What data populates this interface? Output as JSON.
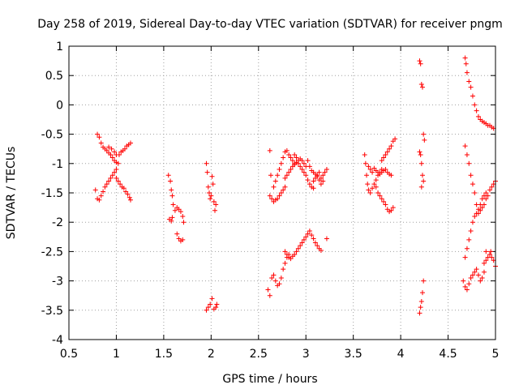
{
  "chart_data": {
    "type": "scatter",
    "title": "Day 258 of 2019, Sidereal Day-to-day VTEC variation (SDTVAR) for receiver pngm",
    "xlabel": "GPS time / hours",
    "ylabel": "SDTVAR / TECUs",
    "xlim": [
      0.5,
      5
    ],
    "ylim": [
      -4,
      1
    ],
    "xticks": [
      0.5,
      1,
      1.5,
      2,
      2.5,
      3,
      3.5,
      4,
      4.5,
      5
    ],
    "xtick_labels": [
      "0.5",
      "1",
      "1.5",
      "2",
      "2.5",
      "3",
      "3.5",
      "4",
      "4.5",
      "5"
    ],
    "yticks": [
      1,
      0.5,
      0,
      -0.5,
      -1,
      -1.5,
      -2,
      -2.5,
      -3,
      -3.5,
      -4
    ],
    "ytick_labels": [
      "1",
      "0.5",
      "0",
      "-0.5",
      "-1",
      "-1.5",
      "-2",
      "-2.5",
      "-3",
      "-3.5",
      "-4"
    ],
    "grid": true,
    "marker": "+",
    "color": "#ff0000",
    "series": [
      {
        "name": "SDTVAR",
        "points": [
          [
            0.8,
            -0.5
          ],
          [
            0.82,
            -0.55
          ],
          [
            0.84,
            -0.65
          ],
          [
            0.86,
            -0.72
          ],
          [
            0.88,
            -0.75
          ],
          [
            0.9,
            -0.78
          ],
          [
            0.92,
            -0.82
          ],
          [
            0.94,
            -0.85
          ],
          [
            0.96,
            -0.9
          ],
          [
            0.98,
            -0.95
          ],
          [
            1.0,
            -0.98
          ],
          [
            1.02,
            -1.0
          ],
          [
            0.92,
            -0.72
          ],
          [
            0.95,
            -0.75
          ],
          [
            0.98,
            -0.8
          ],
          [
            1.0,
            -0.85
          ],
          [
            1.03,
            -0.85
          ],
          [
            1.05,
            -0.8
          ],
          [
            1.07,
            -0.78
          ],
          [
            1.09,
            -0.75
          ],
          [
            1.11,
            -0.7
          ],
          [
            1.13,
            -0.68
          ],
          [
            1.15,
            -0.65
          ],
          [
            0.78,
            -1.45
          ],
          [
            0.8,
            -1.6
          ],
          [
            0.82,
            -1.62
          ],
          [
            0.84,
            -1.55
          ],
          [
            0.86,
            -1.48
          ],
          [
            0.88,
            -1.4
          ],
          [
            0.9,
            -1.35
          ],
          [
            0.92,
            -1.3
          ],
          [
            0.94,
            -1.25
          ],
          [
            0.96,
            -1.2
          ],
          [
            0.98,
            -1.15
          ],
          [
            1.0,
            -1.1
          ],
          [
            1.0,
            -1.25
          ],
          [
            1.02,
            -1.3
          ],
          [
            1.04,
            -1.35
          ],
          [
            1.06,
            -1.4
          ],
          [
            1.08,
            -1.42
          ],
          [
            1.1,
            -1.48
          ],
          [
            1.12,
            -1.52
          ],
          [
            1.14,
            -1.58
          ],
          [
            1.15,
            -1.62
          ],
          [
            1.55,
            -1.2
          ],
          [
            1.57,
            -1.3
          ],
          [
            1.58,
            -1.45
          ],
          [
            1.59,
            -1.55
          ],
          [
            1.6,
            -1.7
          ],
          [
            1.56,
            -1.95
          ],
          [
            1.58,
            -1.98
          ],
          [
            1.59,
            -1.92
          ],
          [
            1.62,
            -1.8
          ],
          [
            1.64,
            -1.75
          ],
          [
            1.66,
            -1.78
          ],
          [
            1.68,
            -1.82
          ],
          [
            1.7,
            -1.9
          ],
          [
            1.71,
            -2.0
          ],
          [
            1.64,
            -2.2
          ],
          [
            1.66,
            -2.28
          ],
          [
            1.68,
            -2.32
          ],
          [
            1.7,
            -2.3
          ],
          [
            1.95,
            -1.0
          ],
          [
            1.96,
            -1.15
          ],
          [
            1.97,
            -1.4
          ],
          [
            1.98,
            -1.5
          ],
          [
            1.99,
            -1.6
          ],
          [
            2.0,
            -1.55
          ],
          [
            2.01,
            -1.22
          ],
          [
            2.02,
            -1.35
          ],
          [
            2.03,
            -1.65
          ],
          [
            2.04,
            -1.8
          ],
          [
            2.05,
            -1.7
          ],
          [
            1.95,
            -3.5
          ],
          [
            1.97,
            -3.45
          ],
          [
            1.99,
            -3.4
          ],
          [
            2.01,
            -3.3
          ],
          [
            2.03,
            -3.48
          ],
          [
            2.05,
            -3.45
          ],
          [
            2.06,
            -3.4
          ],
          [
            2.62,
            -0.78
          ],
          [
            2.63,
            -1.2
          ],
          [
            2.62,
            -1.55
          ],
          [
            2.64,
            -1.6
          ],
          [
            2.66,
            -1.65
          ],
          [
            2.68,
            -1.62
          ],
          [
            2.7,
            -1.6
          ],
          [
            2.72,
            -1.55
          ],
          [
            2.74,
            -1.5
          ],
          [
            2.76,
            -1.45
          ],
          [
            2.78,
            -1.4
          ],
          [
            2.66,
            -1.4
          ],
          [
            2.68,
            -1.3
          ],
          [
            2.7,
            -1.2
          ],
          [
            2.72,
            -1.1
          ],
          [
            2.74,
            -1.0
          ],
          [
            2.76,
            -0.9
          ],
          [
            2.78,
            -0.8
          ],
          [
            2.8,
            -0.78
          ],
          [
            2.82,
            -0.85
          ],
          [
            2.84,
            -0.9
          ],
          [
            2.86,
            -0.95
          ],
          [
            2.88,
            -1.0
          ],
          [
            2.78,
            -1.25
          ],
          [
            2.8,
            -1.2
          ],
          [
            2.82,
            -1.15
          ],
          [
            2.84,
            -1.1
          ],
          [
            2.86,
            -1.05
          ],
          [
            2.88,
            -1.02
          ],
          [
            2.9,
            -0.98
          ],
          [
            2.92,
            -0.95
          ],
          [
            2.94,
            -0.92
          ],
          [
            2.96,
            -0.95
          ],
          [
            2.98,
            -1.0
          ],
          [
            3.0,
            -1.05
          ],
          [
            2.88,
            -0.85
          ],
          [
            2.9,
            -0.9
          ],
          [
            2.92,
            -1.0
          ],
          [
            2.94,
            -1.05
          ],
          [
            2.96,
            -1.1
          ],
          [
            2.98,
            -1.15
          ],
          [
            3.0,
            -1.2
          ],
          [
            3.02,
            -1.28
          ],
          [
            3.04,
            -1.35
          ],
          [
            3.06,
            -1.4
          ],
          [
            3.08,
            -1.42
          ],
          [
            3.02,
            -0.95
          ],
          [
            3.04,
            -1.05
          ],
          [
            3.06,
            -1.12
          ],
          [
            3.08,
            -1.15
          ],
          [
            3.1,
            -1.18
          ],
          [
            3.12,
            -1.22
          ],
          [
            3.14,
            -1.28
          ],
          [
            3.16,
            -1.25
          ],
          [
            3.18,
            -1.2
          ],
          [
            3.2,
            -1.15
          ],
          [
            3.22,
            -1.1
          ],
          [
            3.08,
            -1.3
          ],
          [
            3.1,
            -1.25
          ],
          [
            3.12,
            -1.2
          ],
          [
            3.14,
            -1.15
          ],
          [
            3.16,
            -1.35
          ],
          [
            3.18,
            -1.3
          ],
          [
            2.6,
            -3.15
          ],
          [
            2.62,
            -3.25
          ],
          [
            2.64,
            -2.95
          ],
          [
            2.66,
            -2.9
          ],
          [
            2.68,
            -3.0
          ],
          [
            2.7,
            -3.08
          ],
          [
            2.72,
            -3.05
          ],
          [
            2.74,
            -2.95
          ],
          [
            2.76,
            -2.8
          ],
          [
            2.78,
            -2.7
          ],
          [
            2.8,
            -2.6
          ],
          [
            2.82,
            -2.55
          ],
          [
            2.78,
            -2.5
          ],
          [
            2.8,
            -2.55
          ],
          [
            2.82,
            -2.6
          ],
          [
            2.84,
            -2.62
          ],
          [
            2.86,
            -2.58
          ],
          [
            2.88,
            -2.55
          ],
          [
            2.9,
            -2.5
          ],
          [
            2.92,
            -2.45
          ],
          [
            2.94,
            -2.4
          ],
          [
            2.96,
            -2.35
          ],
          [
            2.98,
            -2.3
          ],
          [
            3.0,
            -2.25
          ],
          [
            3.02,
            -2.2
          ],
          [
            3.04,
            -2.15
          ],
          [
            3.06,
            -2.22
          ],
          [
            3.08,
            -2.28
          ],
          [
            3.1,
            -2.35
          ],
          [
            3.12,
            -2.4
          ],
          [
            3.14,
            -2.45
          ],
          [
            3.16,
            -2.48
          ],
          [
            3.22,
            -2.28
          ],
          [
            3.62,
            -0.85
          ],
          [
            3.63,
            -1.0
          ],
          [
            3.64,
            -1.2
          ],
          [
            3.65,
            -1.35
          ],
          [
            3.66,
            -1.45
          ],
          [
            3.68,
            -1.5
          ],
          [
            3.7,
            -1.42
          ],
          [
            3.72,
            -1.35
          ],
          [
            3.74,
            -1.28
          ],
          [
            3.76,
            -1.2
          ],
          [
            3.78,
            -1.15
          ],
          [
            3.8,
            -1.1
          ],
          [
            3.66,
            -1.05
          ],
          [
            3.68,
            -1.1
          ],
          [
            3.7,
            -1.15
          ],
          [
            3.72,
            -1.08
          ],
          [
            3.74,
            -1.12
          ],
          [
            3.76,
            -1.15
          ],
          [
            3.78,
            -1.18
          ],
          [
            3.8,
            -1.15
          ],
          [
            3.82,
            -1.12
          ],
          [
            3.84,
            -1.1
          ],
          [
            3.86,
            -1.15
          ],
          [
            3.88,
            -1.18
          ],
          [
            3.9,
            -1.2
          ],
          [
            3.74,
            -1.4
          ],
          [
            3.76,
            -1.5
          ],
          [
            3.78,
            -1.55
          ],
          [
            3.8,
            -1.6
          ],
          [
            3.82,
            -1.65
          ],
          [
            3.84,
            -1.7
          ],
          [
            3.86,
            -1.78
          ],
          [
            3.88,
            -1.82
          ],
          [
            3.9,
            -1.8
          ],
          [
            3.92,
            -1.75
          ],
          [
            3.8,
            -0.95
          ],
          [
            3.82,
            -0.9
          ],
          [
            3.84,
            -0.85
          ],
          [
            3.86,
            -0.8
          ],
          [
            3.88,
            -0.75
          ],
          [
            3.9,
            -0.7
          ],
          [
            3.92,
            -0.62
          ],
          [
            3.94,
            -0.58
          ],
          [
            4.2,
            0.75
          ],
          [
            4.21,
            0.7
          ],
          [
            4.22,
            0.35
          ],
          [
            4.23,
            0.3
          ],
          [
            4.24,
            -0.5
          ],
          [
            4.25,
            -0.6
          ],
          [
            4.2,
            -0.8
          ],
          [
            4.21,
            -0.85
          ],
          [
            4.22,
            -1.0
          ],
          [
            4.23,
            -1.2
          ],
          [
            4.24,
            -1.3
          ],
          [
            4.22,
            -1.4
          ],
          [
            4.2,
            -3.55
          ],
          [
            4.21,
            -3.45
          ],
          [
            4.22,
            -3.35
          ],
          [
            4.23,
            -3.2
          ],
          [
            4.24,
            -3.0
          ],
          [
            4.68,
            0.8
          ],
          [
            4.69,
            0.7
          ],
          [
            4.7,
            0.55
          ],
          [
            4.72,
            0.4
          ],
          [
            4.74,
            0.3
          ],
          [
            4.76,
            0.15
          ],
          [
            4.78,
            0.0
          ],
          [
            4.8,
            -0.1
          ],
          [
            4.82,
            -0.2
          ],
          [
            4.84,
            -0.25
          ],
          [
            4.86,
            -0.28
          ],
          [
            4.88,
            -0.3
          ],
          [
            4.9,
            -0.32
          ],
          [
            4.92,
            -0.35
          ],
          [
            4.94,
            -0.35
          ],
          [
            4.96,
            -0.38
          ],
          [
            4.98,
            -0.4
          ],
          [
            4.68,
            -0.7
          ],
          [
            4.7,
            -0.85
          ],
          [
            4.72,
            -1.0
          ],
          [
            4.74,
            -1.2
          ],
          [
            4.76,
            -1.35
          ],
          [
            4.78,
            -1.5
          ],
          [
            4.8,
            -1.7
          ],
          [
            4.82,
            -1.85
          ],
          [
            4.84,
            -1.8
          ],
          [
            4.86,
            -1.75
          ],
          [
            4.88,
            -1.7
          ],
          [
            4.9,
            -1.6
          ],
          [
            4.92,
            -1.55
          ],
          [
            4.94,
            -1.45
          ],
          [
            4.96,
            -1.4
          ],
          [
            4.98,
            -1.35
          ],
          [
            5.0,
            -1.3
          ],
          [
            4.68,
            -2.6
          ],
          [
            4.7,
            -2.45
          ],
          [
            4.72,
            -2.3
          ],
          [
            4.74,
            -2.15
          ],
          [
            4.76,
            -2.0
          ],
          [
            4.78,
            -1.9
          ],
          [
            4.8,
            -1.85
          ],
          [
            4.82,
            -1.78
          ],
          [
            4.84,
            -1.7
          ],
          [
            4.86,
            -1.6
          ],
          [
            4.88,
            -1.55
          ],
          [
            4.9,
            -1.5
          ],
          [
            4.66,
            -3.0
          ],
          [
            4.68,
            -3.1
          ],
          [
            4.7,
            -3.15
          ],
          [
            4.72,
            -3.05
          ],
          [
            4.74,
            -2.95
          ],
          [
            4.76,
            -2.9
          ],
          [
            4.78,
            -2.85
          ],
          [
            4.8,
            -2.8
          ],
          [
            4.82,
            -2.9
          ],
          [
            4.84,
            -3.0
          ],
          [
            4.86,
            -2.95
          ],
          [
            4.88,
            -2.85
          ],
          [
            4.88,
            -2.7
          ],
          [
            4.9,
            -2.65
          ],
          [
            4.92,
            -2.6
          ],
          [
            4.94,
            -2.55
          ],
          [
            4.96,
            -2.6
          ],
          [
            4.98,
            -2.65
          ],
          [
            5.0,
            -2.75
          ],
          [
            4.95,
            -2.5
          ],
          [
            4.9,
            -2.5
          ]
        ]
      }
    ]
  }
}
